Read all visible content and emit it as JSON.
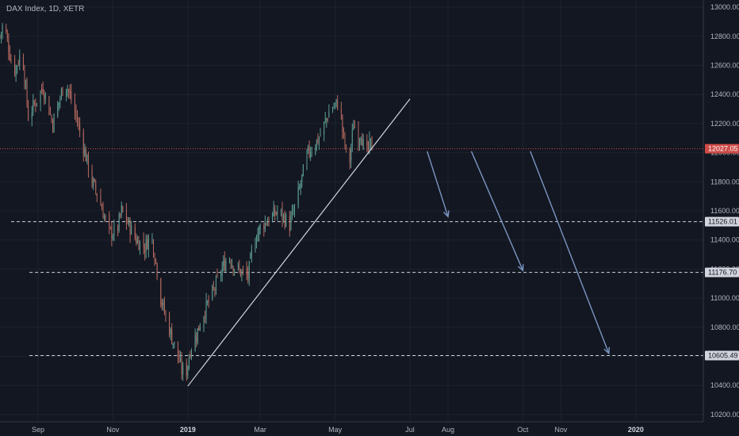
{
  "chart_data": {
    "type": "candlestick",
    "title": "DAX Index, 1D, XETR",
    "ylim": [
      10150,
      13050
    ],
    "y_ticks": [
      10200,
      10400,
      10600,
      10800,
      11000,
      11200,
      11400,
      11600,
      11800,
      12000,
      12200,
      12400,
      12600,
      12800,
      13000
    ],
    "y_tick_labels": [
      "10200.00",
      "10400.00",
      "10600.00",
      "10800.00",
      "11000.00",
      "11200.00",
      "11400.00",
      "11600.00",
      "11800.00",
      "12000.00",
      "12200.00",
      "12400.00",
      "12600.00",
      "12800.00",
      "13000.00"
    ],
    "x_range": [
      "2018-08-01",
      "2020-02-25"
    ],
    "x_ticks": [
      {
        "date": "2018-09-01",
        "label": "Sep",
        "bold": false
      },
      {
        "date": "2018-11-01",
        "label": "Nov",
        "bold": false
      },
      {
        "date": "2019-01-01",
        "label": "2019",
        "bold": true
      },
      {
        "date": "2019-03-01",
        "label": "Mar",
        "bold": false
      },
      {
        "date": "2019-05-01",
        "label": "May",
        "bold": false
      },
      {
        "date": "2019-07-01",
        "label": "Jul",
        "bold": false
      },
      {
        "date": "2019-08-01",
        "label": "Aug",
        "bold": false
      },
      {
        "date": "2019-10-01",
        "label": "Oct",
        "bold": false
      },
      {
        "date": "2019-11-01",
        "label": "Nov",
        "bold": false
      },
      {
        "date": "2020-01-01",
        "label": "2020",
        "bold": true
      }
    ],
    "price_path": [
      [
        "2018-08-01",
        12800
      ],
      [
        "2018-08-04",
        12900
      ],
      [
        "2018-08-12",
        12550
      ],
      [
        "2018-08-19",
        12700
      ],
      [
        "2018-08-24",
        12250
      ],
      [
        "2018-09-05",
        12450
      ],
      [
        "2018-09-13",
        12200
      ],
      [
        "2018-09-23",
        12500
      ],
      [
        "2018-10-02",
        12250
      ],
      [
        "2018-10-15",
        11800
      ],
      [
        "2018-10-20",
        11700
      ],
      [
        "2018-10-29",
        11450
      ],
      [
        "2018-11-04",
        11450
      ],
      [
        "2018-11-08",
        11600
      ],
      [
        "2018-11-20",
        11400
      ],
      [
        "2018-11-27",
        11350
      ],
      [
        "2018-12-02",
        11450
      ],
      [
        "2018-12-06",
        11250
      ],
      [
        "2018-12-10",
        11000
      ],
      [
        "2018-12-13",
        10900
      ],
      [
        "2018-12-20",
        10700
      ],
      [
        "2018-12-24",
        10600
      ],
      [
        "2018-12-27",
        10500
      ],
      [
        "2018-12-31",
        10500
      ],
      [
        "2019-01-03",
        10650
      ],
      [
        "2019-01-08",
        10750
      ],
      [
        "2019-01-14",
        10900
      ],
      [
        "2019-01-22",
        11050
      ],
      [
        "2019-01-29",
        11200
      ],
      [
        "2019-02-03",
        11300
      ],
      [
        "2019-02-09",
        11200
      ],
      [
        "2019-02-19",
        11150
      ],
      [
        "2019-02-24",
        11400
      ],
      [
        "2019-03-02",
        11500
      ],
      [
        "2019-03-09",
        11550
      ],
      [
        "2019-03-16",
        11600
      ],
      [
        "2019-03-25",
        11500
      ],
      [
        "2019-03-30",
        11650
      ],
      [
        "2019-04-02",
        11750
      ],
      [
        "2019-04-06",
        11900
      ],
      [
        "2019-04-09",
        12000
      ],
      [
        "2019-04-18",
        12100
      ],
      [
        "2019-04-27",
        12300
      ],
      [
        "2019-05-05",
        12350
      ],
      [
        "2019-05-07",
        12150
      ],
      [
        "2019-05-10",
        12000
      ],
      [
        "2019-05-13",
        11950
      ],
      [
        "2019-05-16",
        12200
      ],
      [
        "2019-05-20",
        12100
      ],
      [
        "2019-05-22",
        12150
      ],
      [
        "2019-05-24",
        12050
      ],
      [
        "2019-05-27",
        12000
      ],
      [
        "2019-05-30",
        12060
      ],
      [
        "2019-06-01",
        12027
      ]
    ],
    "current_price": 12027.05,
    "current_price_label": "12027.05",
    "horizontal_levels": [
      {
        "value": 11526.01,
        "label": "11526.01",
        "from": "2018-08-10"
      },
      {
        "value": 11176.7,
        "label": "11176.70",
        "from": "2018-08-25"
      },
      {
        "value": 10605.49,
        "label": "10605.49",
        "from": "2018-08-25"
      }
    ],
    "trendline": {
      "from": [
        "2019-01-01",
        10395
      ],
      "to": [
        "2019-07-01",
        12370
      ]
    },
    "arrows": [
      {
        "from": [
          "2019-07-15",
          12010
        ],
        "to": [
          "2019-08-01",
          11560
        ]
      },
      {
        "from": [
          "2019-08-20",
          12010
        ],
        "to": [
          "2019-10-01",
          11190
        ]
      },
      {
        "from": [
          "2019-10-07",
          12010
        ],
        "to": [
          "2019-12-10",
          10620
        ]
      }
    ],
    "colors": {
      "background": "#131722",
      "up": "#5b9c91",
      "down": "#b5695f",
      "grid": "#1e222d",
      "axis_text": "#b2b5be",
      "level_line": "#d1d4dc",
      "trendline": "#d1d4dc",
      "arrow": "#7b95c2",
      "current_price": "#cd4c48"
    }
  }
}
